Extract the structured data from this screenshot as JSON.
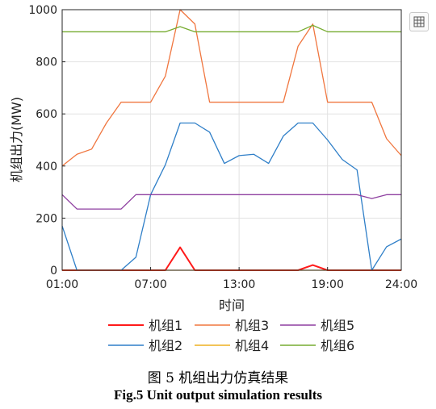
{
  "chart_data": {
    "type": "line",
    "xlabel": "时间",
    "ylabel": "机组出力(MW)",
    "xlim": [
      1,
      24
    ],
    "ylim": [
      0,
      1000
    ],
    "x_ticks": [
      1,
      7,
      13,
      19,
      24
    ],
    "x_tick_labels": [
      "01:00",
      "07:00",
      "13:00",
      "19:00",
      "24:00"
    ],
    "y_ticks": [
      0,
      200,
      400,
      600,
      800,
      1000
    ],
    "y_tick_labels": [
      "0",
      "200",
      "400",
      "600",
      "800",
      "1000"
    ],
    "grid": true,
    "legend_position": "bottom",
    "x": [
      1,
      2,
      3,
      4,
      5,
      6,
      7,
      8,
      9,
      10,
      11,
      12,
      13,
      14,
      15,
      16,
      17,
      18,
      19,
      20,
      21,
      22,
      23,
      24
    ],
    "series": [
      {
        "name": "机组1",
        "color": "#ff1a1a",
        "values": [
          0,
          0,
          0,
          0,
          0,
          0,
          0,
          0,
          88,
          0,
          0,
          0,
          0,
          0,
          0,
          0,
          0,
          20,
          0,
          0,
          0,
          0,
          0,
          0
        ]
      },
      {
        "name": "机组2",
        "color": "#2f7fc8",
        "values": [
          170,
          0,
          0,
          0,
          0,
          50,
          290,
          405,
          565,
          565,
          530,
          410,
          440,
          445,
          410,
          515,
          565,
          565,
          500,
          425,
          385,
          0,
          90,
          120
        ]
      },
      {
        "name": "机组3",
        "color": "#f0763f",
        "values": [
          400,
          445,
          465,
          565,
          645,
          645,
          645,
          745,
          1000,
          945,
          645,
          645,
          645,
          645,
          645,
          645,
          860,
          945,
          645,
          645,
          645,
          645,
          505,
          440
        ]
      },
      {
        "name": "机组4",
        "color": "#edb020",
        "values": [
          0,
          0,
          0,
          0,
          0,
          0,
          0,
          0,
          0,
          0,
          0,
          0,
          0,
          0,
          0,
          0,
          0,
          0,
          0,
          0,
          0,
          0,
          0,
          0
        ]
      },
      {
        "name": "机组5",
        "color": "#8e3fa0",
        "values": [
          290,
          235,
          235,
          235,
          235,
          290,
          290,
          290,
          290,
          290,
          290,
          290,
          290,
          290,
          290,
          290,
          290,
          290,
          290,
          290,
          290,
          275,
          290,
          290
        ]
      },
      {
        "name": "机组6",
        "color": "#77ac30",
        "values": [
          915,
          915,
          915,
          915,
          915,
          915,
          915,
          915,
          935,
          915,
          915,
          915,
          915,
          915,
          915,
          915,
          915,
          940,
          915,
          915,
          915,
          915,
          915,
          915
        ]
      }
    ]
  },
  "caption_cn": "图 5  机组出力仿真结果",
  "caption_en": "Fig.5 Unit output simulation results",
  "toolbar_icon": "axes-toolbar-icon"
}
